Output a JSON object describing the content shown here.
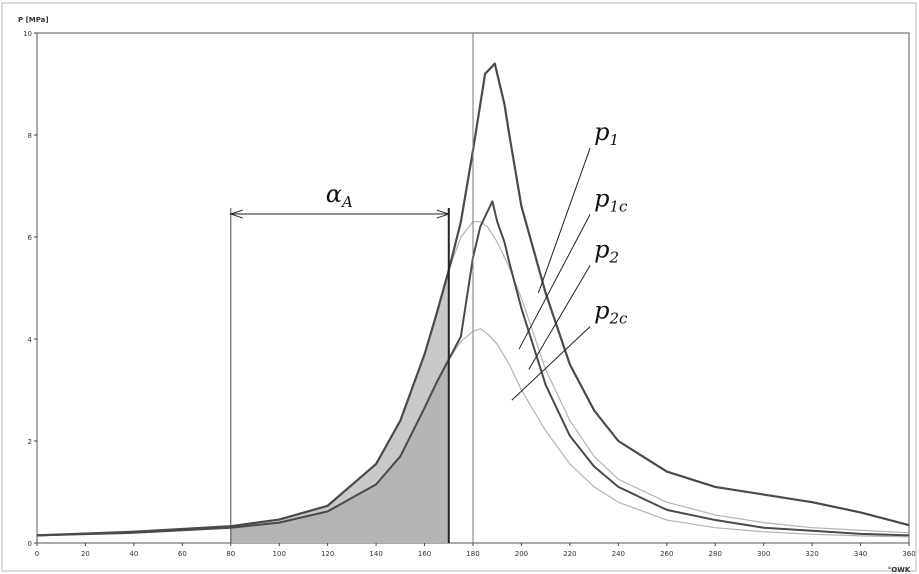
{
  "chart_data": {
    "type": "line",
    "ylabel": "P [MPa]",
    "xlabel": "°OWK",
    "xlim": [
      0,
      360
    ],
    "ylim": [
      0,
      10
    ],
    "x_ticks": [
      "0",
      "20",
      "40",
      "60",
      "80",
      "100",
      "120",
      "140",
      "160",
      "180",
      "200",
      "220",
      "240",
      "260",
      "280",
      "300",
      "320",
      "340",
      "360"
    ],
    "y_ticks": [
      "0",
      "2",
      "4",
      "6",
      "8",
      "10"
    ],
    "grid": false,
    "tdc_marker_x": 180,
    "annotation_interval": {
      "label_base": "α",
      "label_sub": "A",
      "start": 80,
      "end": 170,
      "y": 6.45,
      "shaded_series": "p2",
      "shaded_under_series": "p1"
    },
    "series": [
      {
        "name": "p1",
        "label_base": "p",
        "label_sub": "1",
        "color": "#4a4a4a",
        "width": 2.2,
        "x": [
          0,
          40,
          80,
          100,
          120,
          140,
          150,
          160,
          165,
          170,
          175,
          180,
          183,
          185,
          187,
          189,
          191,
          193,
          195,
          200,
          210,
          220,
          230,
          240,
          260,
          280,
          300,
          320,
          340,
          360
        ],
        "y": [
          0.15,
          0.22,
          0.33,
          0.46,
          0.73,
          1.55,
          2.4,
          3.7,
          4.5,
          5.35,
          6.3,
          7.7,
          8.6,
          9.2,
          9.3,
          9.4,
          9.0,
          8.6,
          8.0,
          6.6,
          4.9,
          3.5,
          2.6,
          2.0,
          1.4,
          1.1,
          0.95,
          0.8,
          0.6,
          0.35
        ]
      },
      {
        "name": "p1c",
        "label_base": "p",
        "label_sub": "1c",
        "color": "#b3b3b3",
        "width": 1.2,
        "x": [
          0,
          40,
          80,
          100,
          120,
          140,
          150,
          160,
          165,
          170,
          175,
          180,
          183,
          186,
          190,
          195,
          200,
          210,
          220,
          230,
          240,
          260,
          280,
          300,
          320,
          340,
          360
        ],
        "y": [
          0.15,
          0.22,
          0.33,
          0.46,
          0.73,
          1.55,
          2.4,
          3.7,
          4.5,
          5.35,
          6.0,
          6.3,
          6.3,
          6.2,
          5.9,
          5.4,
          4.8,
          3.4,
          2.4,
          1.7,
          1.25,
          0.8,
          0.55,
          0.4,
          0.3,
          0.25,
          0.2
        ]
      },
      {
        "name": "p2",
        "label_base": "p",
        "label_sub": "2",
        "color": "#4a4a4a",
        "width": 2.0,
        "x": [
          0,
          40,
          80,
          100,
          120,
          140,
          150,
          160,
          165,
          170,
          175,
          180,
          183,
          186,
          188,
          190,
          193,
          195,
          200,
          210,
          220,
          230,
          240,
          260,
          280,
          300,
          320,
          340,
          360
        ],
        "y": [
          0.15,
          0.2,
          0.3,
          0.4,
          0.62,
          1.15,
          1.7,
          2.65,
          3.15,
          3.6,
          4.05,
          5.6,
          6.2,
          6.5,
          6.7,
          6.3,
          5.9,
          5.5,
          4.6,
          3.1,
          2.1,
          1.5,
          1.1,
          0.65,
          0.45,
          0.3,
          0.24,
          0.18,
          0.15
        ]
      },
      {
        "name": "p2c",
        "label_base": "p",
        "label_sub": "2c",
        "color": "#b3b3b3",
        "width": 1.2,
        "x": [
          0,
          40,
          80,
          100,
          120,
          140,
          150,
          160,
          165,
          170,
          175,
          180,
          183,
          186,
          190,
          195,
          200,
          210,
          220,
          230,
          240,
          260,
          280,
          300,
          320,
          340,
          360
        ],
        "y": [
          0.15,
          0.2,
          0.3,
          0.4,
          0.62,
          1.15,
          1.7,
          2.65,
          3.15,
          3.6,
          3.95,
          4.15,
          4.2,
          4.1,
          3.9,
          3.5,
          3.0,
          2.2,
          1.55,
          1.1,
          0.8,
          0.45,
          0.3,
          0.22,
          0.17,
          0.14,
          0.12
        ]
      }
    ],
    "callouts": [
      {
        "series": "p1",
        "x": 207,
        "y": 4.9
      },
      {
        "series": "p1c",
        "x": 199,
        "y": 3.8
      },
      {
        "series": "p2",
        "x": 203,
        "y": 3.4
      },
      {
        "series": "p2c",
        "x": 196,
        "y": 2.8
      }
    ],
    "label_positions": [
      {
        "series": "p1",
        "x": 230,
        "y": 7.9
      },
      {
        "series": "p1c",
        "x": 230,
        "y": 6.6
      },
      {
        "series": "p2",
        "x": 230,
        "y": 5.6
      },
      {
        "series": "p2c",
        "x": 230,
        "y": 4.4
      }
    ]
  }
}
